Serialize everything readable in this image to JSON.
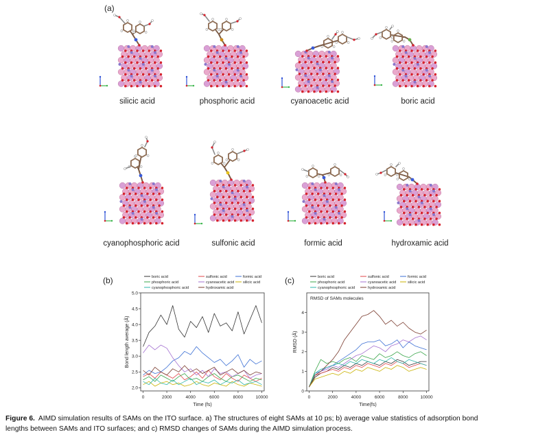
{
  "panels": {
    "a": "(a)",
    "b": "(b)",
    "c": "(c)"
  },
  "structures": [
    {
      "label": "silicic acid"
    },
    {
      "label": "phosphoric acid"
    },
    {
      "label": "cyanoacetic acid"
    },
    {
      "label": "boric acid"
    },
    {
      "label": "cyanophosphoric acid"
    },
    {
      "label": "sulfonic acid"
    },
    {
      "label": "formic acid"
    },
    {
      "label": "hydroxamic acid"
    }
  ],
  "chart_data": [
    {
      "type": "line",
      "xlabel": "Time (fs)",
      "ylabel": "Bond length average (Å)",
      "xlim": [
        -200,
        10200
      ],
      "ylim": [
        1.9,
        5.0
      ],
      "xticks": [
        0,
        2000,
        4000,
        6000,
        8000,
        10000
      ],
      "xtick_labels": [
        "0",
        "2000",
        "4000",
        "6000",
        "8000",
        "10000"
      ],
      "yticks": [
        2.0,
        2.5,
        3.0,
        3.5,
        4.0,
        4.5,
        5.0
      ],
      "ytick_labels": [
        "2.0",
        "2.5",
        "3.0",
        "3.5",
        "4.0",
        "4.5",
        "5.0"
      ],
      "grid": false,
      "legend": "top",
      "x": [
        0,
        500,
        1000,
        1500,
        2000,
        2500,
        3000,
        3500,
        4000,
        4500,
        5000,
        5500,
        6000,
        6500,
        7000,
        7500,
        8000,
        8500,
        9000,
        9500,
        10000
      ],
      "series": [
        {
          "name": "boric acid",
          "color": "#333333",
          "values": [
            3.3,
            3.75,
            3.95,
            4.3,
            4.0,
            4.6,
            3.85,
            3.6,
            4.1,
            3.9,
            4.25,
            3.75,
            4.35,
            3.95,
            4.05,
            3.8,
            4.4,
            3.7,
            4.15,
            4.6,
            4.05
          ]
        },
        {
          "name": "sulfonic acid",
          "color": "#e0454a",
          "values": [
            2.35,
            2.45,
            2.3,
            2.5,
            2.4,
            2.3,
            2.45,
            2.25,
            2.35,
            2.5,
            2.3,
            2.55,
            2.35,
            2.25,
            2.45,
            2.3,
            2.2,
            2.4,
            2.3,
            2.2,
            2.3
          ]
        },
        {
          "name": "formic acid",
          "color": "#3b6fd4",
          "values": [
            2.4,
            2.55,
            2.45,
            2.5,
            2.65,
            2.85,
            2.95,
            3.15,
            3.05,
            3.3,
            3.1,
            2.95,
            2.8,
            2.9,
            2.7,
            2.85,
            3.05,
            2.65,
            2.9,
            2.75,
            2.85
          ]
        },
        {
          "name": "phosphoric acid",
          "color": "#3aa64a",
          "values": [
            2.25,
            2.35,
            2.2,
            2.4,
            2.3,
            2.2,
            2.35,
            2.45,
            2.25,
            2.3,
            2.2,
            2.35,
            2.45,
            2.3,
            2.2,
            2.35,
            2.4,
            2.3,
            2.2,
            2.3,
            2.25
          ]
        },
        {
          "name": "cyanoacetic acid",
          "color": "#a36fd0",
          "values": [
            3.1,
            3.35,
            3.2,
            3.35,
            3.25,
            2.95,
            2.7,
            2.5,
            2.6,
            2.4,
            2.55,
            2.35,
            2.6,
            2.45,
            2.5,
            2.35,
            2.45,
            2.55,
            2.3,
            2.4,
            2.45
          ]
        },
        {
          "name": "silicic acid",
          "color": "#c9b200",
          "values": [
            2.1,
            2.2,
            2.05,
            2.15,
            2.2,
            2.1,
            2.15,
            2.05,
            2.1,
            2.2,
            2.1,
            2.05,
            2.15,
            2.1,
            2.05,
            2.2,
            2.1,
            2.05,
            2.15,
            2.1,
            2.05
          ]
        },
        {
          "name": "cyanophosphoric acid",
          "color": "#2bb5a8",
          "values": [
            2.2,
            2.1,
            2.3,
            2.15,
            2.1,
            2.25,
            2.1,
            2.2,
            2.3,
            2.1,
            2.2,
            2.15,
            2.25,
            2.1,
            2.2,
            2.15,
            2.25,
            2.1,
            2.15,
            2.2,
            2.1
          ]
        },
        {
          "name": "hydroxamic acid",
          "color": "#7a3b2e",
          "values": [
            2.55,
            2.4,
            2.65,
            2.5,
            2.4,
            2.6,
            2.5,
            2.7,
            2.5,
            2.6,
            2.45,
            2.55,
            2.65,
            2.4,
            2.5,
            2.6,
            2.45,
            2.55,
            2.4,
            2.5,
            2.45
          ]
        }
      ]
    },
    {
      "type": "line",
      "annotation": "RMSD of SAMs molecules",
      "xlabel": "Time(fs)",
      "ylabel": "RMSD (Å)",
      "xlim": [
        -200,
        10200
      ],
      "ylim": [
        0,
        5
      ],
      "xticks": [
        0,
        2000,
        4000,
        6000,
        8000,
        10000
      ],
      "xtick_labels": [
        "0",
        "2000",
        "4000",
        "6000",
        "8000",
        "10000"
      ],
      "yticks": [
        0,
        1,
        2,
        3,
        4
      ],
      "ytick_labels": [
        "0",
        "1",
        "2",
        "3",
        "4"
      ],
      "grid": false,
      "legend": "top",
      "x": [
        0,
        500,
        1000,
        1500,
        2000,
        2500,
        3000,
        3500,
        4000,
        4500,
        5000,
        5500,
        6000,
        6500,
        7000,
        7500,
        8000,
        8500,
        9000,
        9500,
        10000
      ],
      "series": [
        {
          "name": "boric acid",
          "color": "#333333",
          "values": [
            0.2,
            0.7,
            0.9,
            1.0,
            1.2,
            1.1,
            1.3,
            1.2,
            1.4,
            1.3,
            1.5,
            1.4,
            1.3,
            1.5,
            1.4,
            1.6,
            1.5,
            1.3,
            1.4,
            1.5,
            1.5
          ]
        },
        {
          "name": "sulfonic acid",
          "color": "#e0454a",
          "values": [
            0.2,
            0.8,
            0.9,
            1.0,
            1.1,
            1.0,
            1.2,
            1.1,
            1.3,
            1.2,
            1.4,
            1.3,
            1.2,
            1.4,
            1.3,
            1.5,
            1.4,
            1.2,
            1.3,
            1.4,
            1.3
          ]
        },
        {
          "name": "formic acid",
          "color": "#3b6fd4",
          "values": [
            0.2,
            0.9,
            1.0,
            1.2,
            1.3,
            1.5,
            1.7,
            1.9,
            2.1,
            2.4,
            2.5,
            2.5,
            2.6,
            2.3,
            2.4,
            2.6,
            2.2,
            2.5,
            2.3,
            2.2,
            2.1
          ]
        },
        {
          "name": "phosphoric acid",
          "color": "#3aa64a",
          "values": [
            0.2,
            1.0,
            1.6,
            1.4,
            1.5,
            1.4,
            1.6,
            1.7,
            1.5,
            1.8,
            1.7,
            1.6,
            1.9,
            1.7,
            1.8,
            2.0,
            1.8,
            1.7,
            1.9,
            2.0,
            1.8
          ]
        },
        {
          "name": "cyanoacetic acid",
          "color": "#a36fd0",
          "values": [
            0.2,
            0.8,
            1.0,
            1.1,
            1.3,
            1.2,
            1.4,
            1.6,
            1.8,
            1.9,
            2.1,
            2.3,
            2.2,
            2.0,
            2.3,
            2.4,
            2.6,
            2.5,
            2.7,
            2.8,
            2.6
          ]
        },
        {
          "name": "silicic acid",
          "color": "#c9b200",
          "values": [
            0.2,
            0.6,
            0.7,
            0.8,
            0.9,
            0.8,
            1.0,
            0.9,
            1.1,
            1.0,
            1.2,
            1.1,
            1.0,
            1.2,
            1.1,
            1.3,
            1.2,
            1.0,
            1.1,
            1.2,
            1.1
          ]
        },
        {
          "name": "cyanophosphoric acid",
          "color": "#2bb5a8",
          "values": [
            0.2,
            0.9,
            1.1,
            1.2,
            1.3,
            1.4,
            1.3,
            1.5,
            1.4,
            1.6,
            1.5,
            1.4,
            1.6,
            1.5,
            1.7,
            1.5,
            1.4,
            1.6,
            1.5,
            1.4,
            1.3
          ]
        },
        {
          "name": "hydroxamic acid",
          "color": "#7a3b2e",
          "values": [
            0.2,
            0.8,
            1.0,
            1.3,
            1.6,
            2.0,
            2.6,
            3.0,
            3.4,
            3.8,
            3.9,
            4.1,
            3.8,
            3.4,
            3.6,
            3.3,
            3.5,
            3.2,
            3.0,
            2.9,
            3.1
          ]
        }
      ]
    }
  ],
  "caption": {
    "label": "Figure 6.",
    "line1": "AIMD simulation results of SAMs on the ITO surface. a) The structures of eight SAMs at 10 ps; b) average value statistics of adsorption bond",
    "line2": "lengths between SAMs and ITO surfaces; and c) RMSD changes of SAMs during the AIMD simulation process."
  }
}
